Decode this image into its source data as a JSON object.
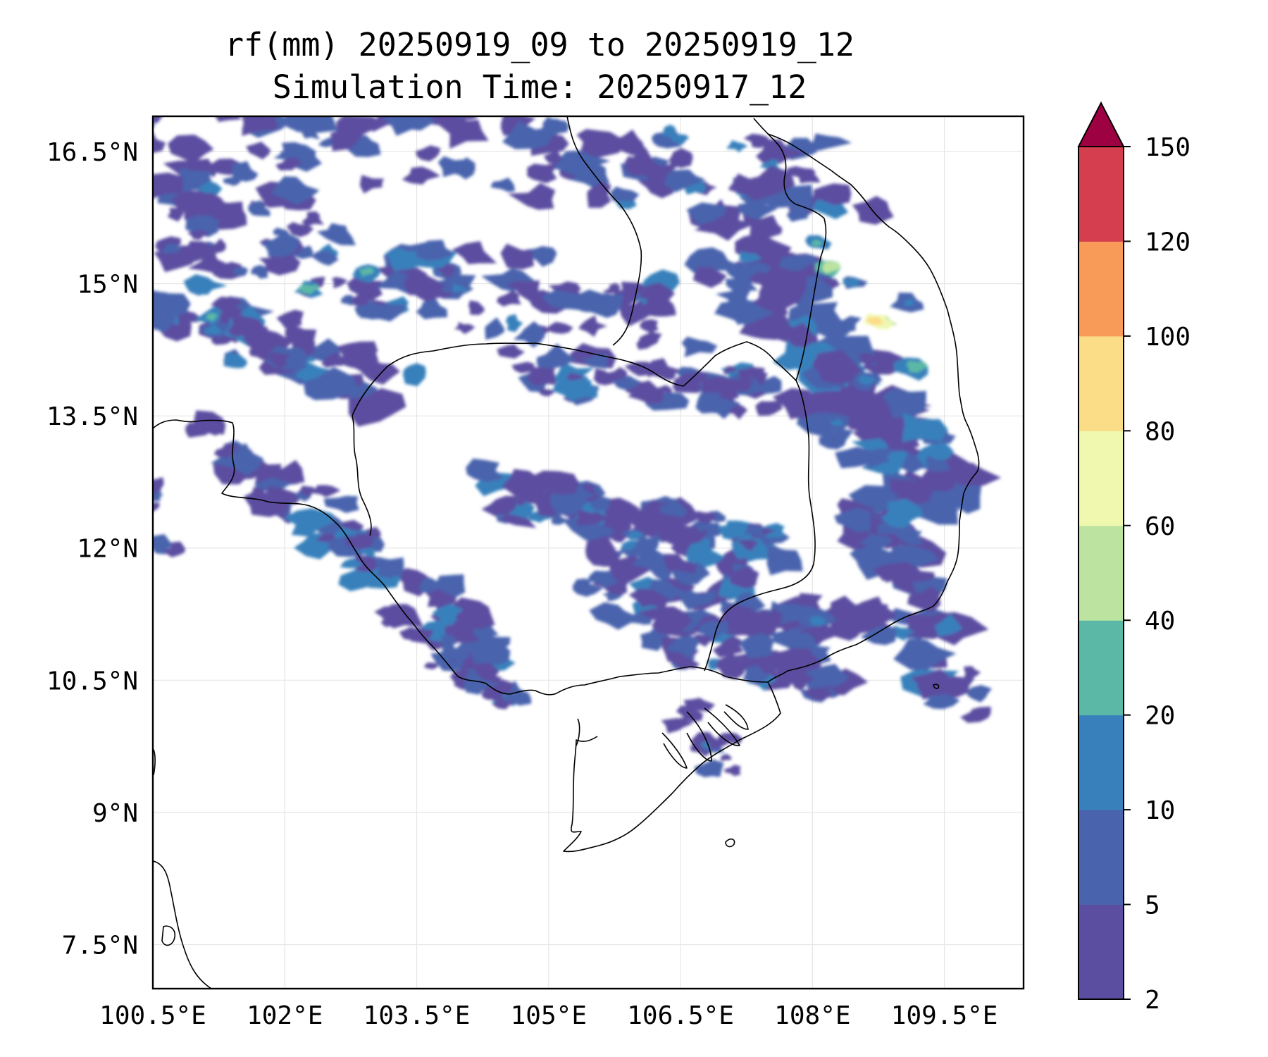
{
  "chart_data": {
    "type": "filled-contour-map",
    "title_line1": "rf(mm) 20250919_09 to 20250919_12",
    "title_line2": "Simulation Time: 20250917_12",
    "x_ticks": [
      "100.5°E",
      "102°E",
      "103.5°E",
      "105°E",
      "106.5°E",
      "108°E",
      "109.5°E"
    ],
    "x_tick_values": [
      100.5,
      102,
      103.5,
      105,
      106.5,
      108,
      109.5
    ],
    "y_ticks": [
      "16.5°N",
      "15°N",
      "13.5°N",
      "12°N",
      "10.5°N",
      "9°N",
      "7.5°N"
    ],
    "y_tick_values": [
      16.5,
      15,
      13.5,
      12,
      10.5,
      9,
      7.5
    ],
    "lon_range": [
      100.5,
      110.4
    ],
    "lat_range": [
      7.0,
      16.9
    ],
    "grid": true,
    "colorbar": {
      "levels": [
        "2",
        "5",
        "10",
        "20",
        "40",
        "60",
        "80",
        "100",
        "120",
        "150"
      ],
      "colors": [
        "#5b4da0",
        "#4a63ad",
        "#3880bb",
        "#5cb8a6",
        "#bce4a0",
        "#f0f8b0",
        "#fbdc87",
        "#f89a58",
        "#d43e4e",
        "#9e0142"
      ],
      "extend": "max",
      "position": "right"
    },
    "coastline_color": "#000000"
  }
}
